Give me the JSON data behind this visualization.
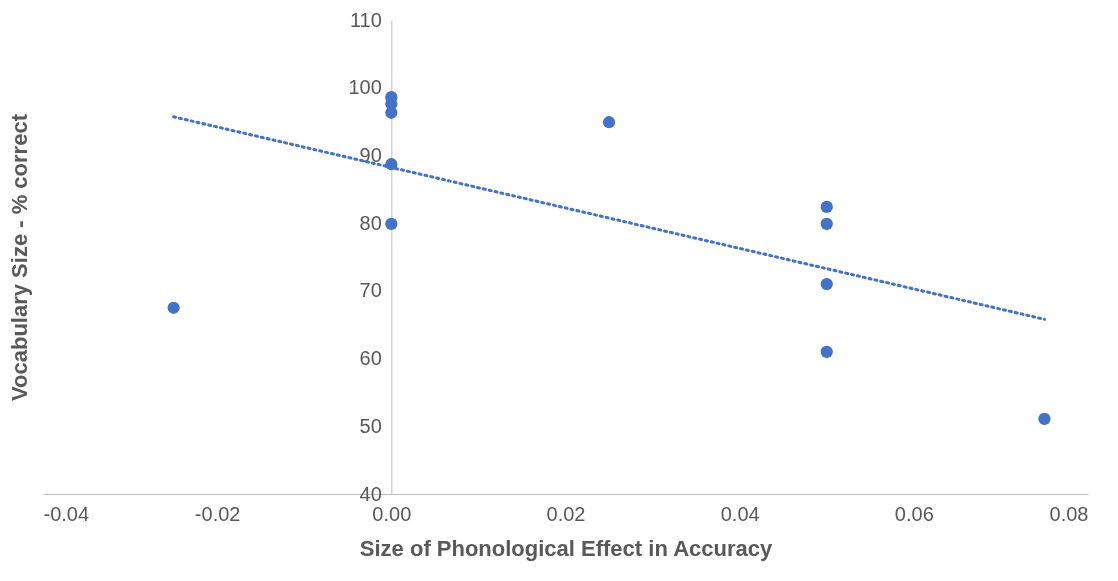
{
  "chart_data": {
    "type": "scatter",
    "xlabel": "Size of Phonological Effect in Accuracy",
    "ylabel": "Vocabulary Size -  % correct",
    "xlim": [
      -0.04,
      0.08
    ],
    "xticks": [
      -0.04,
      -0.02,
      {
        "value": 0,
        "label": "0.00"
      },
      0.02,
      0.04,
      0.06,
      0.08
    ],
    "ylim": [
      40,
      110
    ],
    "yticks": [
      40,
      50,
      60,
      70,
      80,
      90,
      100,
      110
    ],
    "grid": false,
    "series": [
      {
        "color": "#4472c4",
        "marker": "circle",
        "x": [
          0,
          0,
          0,
          0,
          0,
          0.025,
          0.05,
          0.05,
          0.05,
          0.05,
          0.075,
          -0.025
        ],
        "values": [
          98.6,
          97.6,
          96.3,
          88.7,
          79.9,
          94.9,
          82.4,
          79.9,
          71.0,
          61.0,
          51.1,
          67.5
        ]
      },
      {
        "type": "line",
        "color": "#4472c4",
        "line_style": "dotted",
        "x": [
          -0.025,
          0.075
        ],
        "values": [
          95.7,
          65.8
        ]
      }
    ]
  }
}
